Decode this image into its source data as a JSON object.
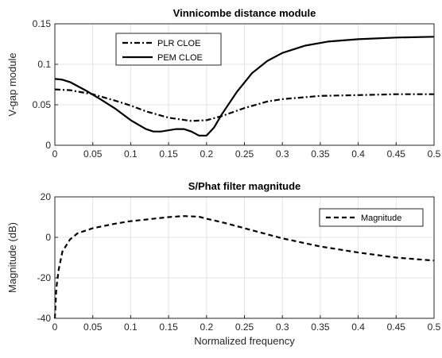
{
  "chart_data": [
    {
      "type": "line",
      "title": "Vinnicombe distance module",
      "xlabel": "",
      "ylabel": "V-gap module",
      "xlim": [
        0,
        0.5
      ],
      "ylim": [
        0,
        0.15
      ],
      "xticks": [
        "0",
        "0.05",
        "0.1",
        "0.15",
        "0.2",
        "0.25",
        "0.3",
        "0.35",
        "0.4",
        "0.45",
        "0.5"
      ],
      "yticks": [
        "0",
        "0.05",
        "0.1",
        "0.15"
      ],
      "grid": true,
      "legend_position": "top-left",
      "series": [
        {
          "name": "PLR CLOE",
          "style": "dash-dot",
          "color": "#000000",
          "x": [
            0,
            0.02,
            0.05,
            0.08,
            0.1,
            0.12,
            0.15,
            0.18,
            0.2,
            0.22,
            0.25,
            0.28,
            0.3,
            0.35,
            0.4,
            0.45,
            0.5
          ],
          "y": [
            0.069,
            0.068,
            0.063,
            0.055,
            0.049,
            0.042,
            0.034,
            0.03,
            0.031,
            0.036,
            0.046,
            0.054,
            0.057,
            0.061,
            0.062,
            0.063,
            0.063
          ]
        },
        {
          "name": "PEM CLOE",
          "style": "solid",
          "color": "#000000",
          "x": [
            0,
            0.01,
            0.02,
            0.04,
            0.06,
            0.08,
            0.1,
            0.12,
            0.13,
            0.14,
            0.16,
            0.17,
            0.18,
            0.19,
            0.2,
            0.21,
            0.22,
            0.24,
            0.26,
            0.28,
            0.3,
            0.33,
            0.36,
            0.4,
            0.45,
            0.5
          ],
          "y": [
            0.082,
            0.081,
            0.078,
            0.068,
            0.057,
            0.045,
            0.031,
            0.02,
            0.017,
            0.017,
            0.02,
            0.02,
            0.017,
            0.012,
            0.012,
            0.022,
            0.038,
            0.066,
            0.089,
            0.104,
            0.114,
            0.123,
            0.128,
            0.131,
            0.133,
            0.134
          ]
        }
      ]
    },
    {
      "type": "line",
      "title": "S/Phat filter magnitude",
      "xlabel": "Normalized frequency",
      "ylabel": "Magnitude (dB)",
      "xlim": [
        0,
        0.5
      ],
      "ylim": [
        -40,
        20
      ],
      "xticks": [
        "0",
        "0.05",
        "0.1",
        "0.15",
        "0.2",
        "0.25",
        "0.3",
        "0.35",
        "0.4",
        "0.45",
        "0.5"
      ],
      "yticks": [
        "-40",
        "-20",
        "0",
        "20"
      ],
      "grid": true,
      "legend_position": "top-right",
      "series": [
        {
          "name": "Magnitude",
          "style": "dashed",
          "color": "#000000",
          "x": [
            0,
            0.002,
            0.005,
            0.01,
            0.02,
            0.03,
            0.05,
            0.08,
            0.1,
            0.12,
            0.15,
            0.17,
            0.19,
            0.2,
            0.22,
            0.25,
            0.3,
            0.35,
            0.4,
            0.45,
            0.5
          ],
          "y": [
            -40,
            -25,
            -16,
            -7,
            -1,
            2,
            4.5,
            6.8,
            8,
            8.8,
            10,
            10.5,
            10.2,
            9.2,
            7.5,
            4.5,
            -0.5,
            -4.5,
            -7.5,
            -10,
            -11.5
          ]
        }
      ]
    }
  ]
}
